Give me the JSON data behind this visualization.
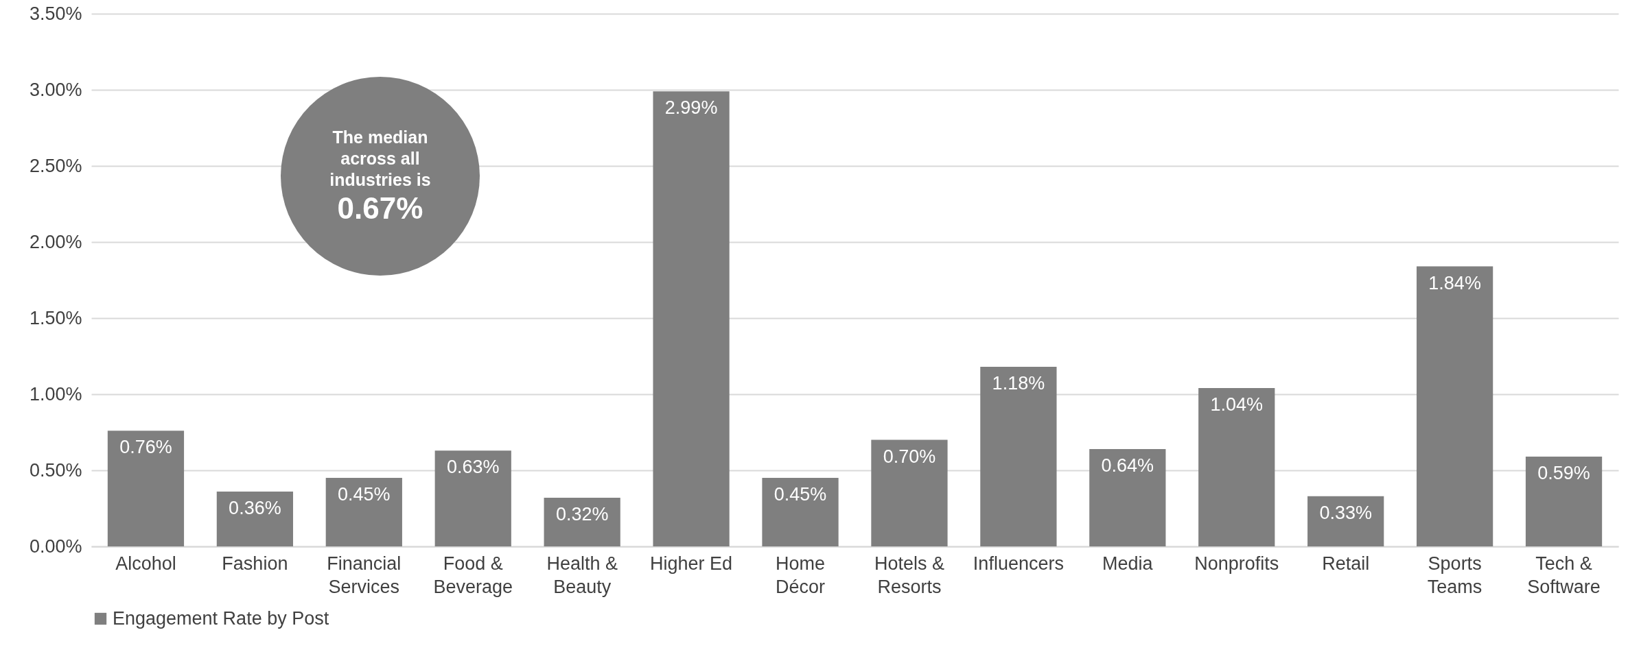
{
  "chart_data": {
    "type": "bar",
    "categories": [
      "Alcohol",
      "Fashion",
      "Financial\nServices",
      "Food &\nBeverage",
      "Health &\nBeauty",
      "Higher Ed",
      "Home\nDécor",
      "Hotels &\nResorts",
      "Influencers",
      "Media",
      "Nonprofits",
      "Retail",
      "Sports\nTeams",
      "Tech &\nSoftware"
    ],
    "series": [
      {
        "name": "Engagement Rate by Post",
        "color": "#7f7f7f",
        "values": [
          0.76,
          0.36,
          0.45,
          0.63,
          0.32,
          2.99,
          0.45,
          0.7,
          1.18,
          0.64,
          1.04,
          0.33,
          1.84,
          0.59
        ],
        "value_labels": [
          "0.76%",
          "0.36%",
          "0.45%",
          "0.63%",
          "0.32%",
          "2.99%",
          "0.45%",
          "0.70%",
          "1.18%",
          "0.64%",
          "1.04%",
          "0.33%",
          "1.84%",
          "0.59%"
        ]
      }
    ],
    "ylim": [
      0,
      3.5
    ],
    "yticks": [
      {
        "value": 0,
        "label": "0.00%"
      },
      {
        "value": 0.5,
        "label": "0.50%"
      },
      {
        "value": 1,
        "label": "1.00%"
      },
      {
        "value": 1.5,
        "label": "1.50%"
      },
      {
        "value": 2,
        "label": "2.00%"
      },
      {
        "value": 2.5,
        "label": "2.50%"
      },
      {
        "value": 3,
        "label": "3.00%"
      },
      {
        "value": 3.5,
        "label": "3.50%"
      }
    ],
    "grid": "y",
    "legend": "bottom",
    "annotations": [
      "The median across all industries is 0.67%"
    ]
  }
}
